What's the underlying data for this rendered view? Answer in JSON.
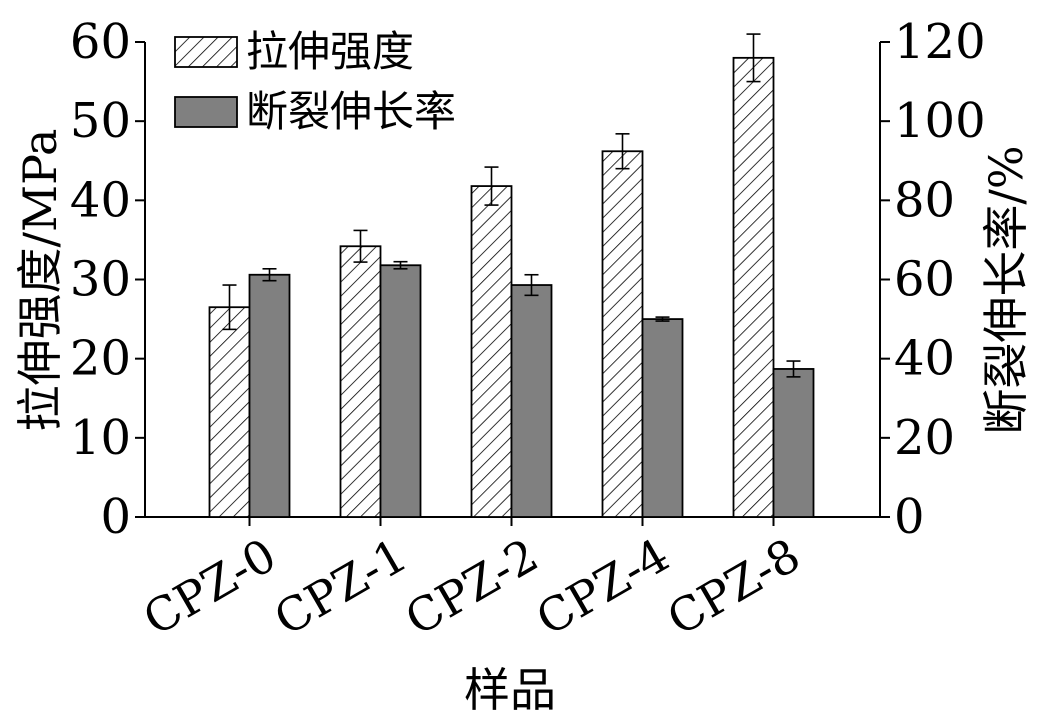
{
  "chart_data": {
    "type": "bar",
    "xlabel": "样品",
    "ylabel_left": "拉伸强度/MPa",
    "ylabel_right": "断裂伸长率/%",
    "categories": [
      "CPZ-0",
      "CPZ-1",
      "CPZ-2",
      "CPZ-4",
      "CPZ-8"
    ],
    "ylim_left": [
      0,
      60
    ],
    "ylim_right": [
      0,
      120
    ],
    "yticks_left": [
      "0",
      "10",
      "20",
      "30",
      "40",
      "50",
      "60"
    ],
    "yticks_right": [
      "0",
      "20",
      "40",
      "60",
      "80",
      "100",
      "120"
    ],
    "legend_position": "top-left",
    "series": [
      {
        "name": "拉伸强度",
        "axis": "left",
        "style": "hatched",
        "values": [
          26.5,
          34.2,
          41.8,
          46.2,
          58.0
        ],
        "errors": [
          2.8,
          2.0,
          2.4,
          2.2,
          3.0
        ]
      },
      {
        "name": "断裂伸长率",
        "axis": "right",
        "style": "solid",
        "color": "#808080",
        "values": [
          61.2,
          63.6,
          58.6,
          50.0,
          37.4
        ],
        "errors": [
          1.5,
          0.9,
          2.6,
          0.5,
          2.0
        ]
      }
    ]
  }
}
